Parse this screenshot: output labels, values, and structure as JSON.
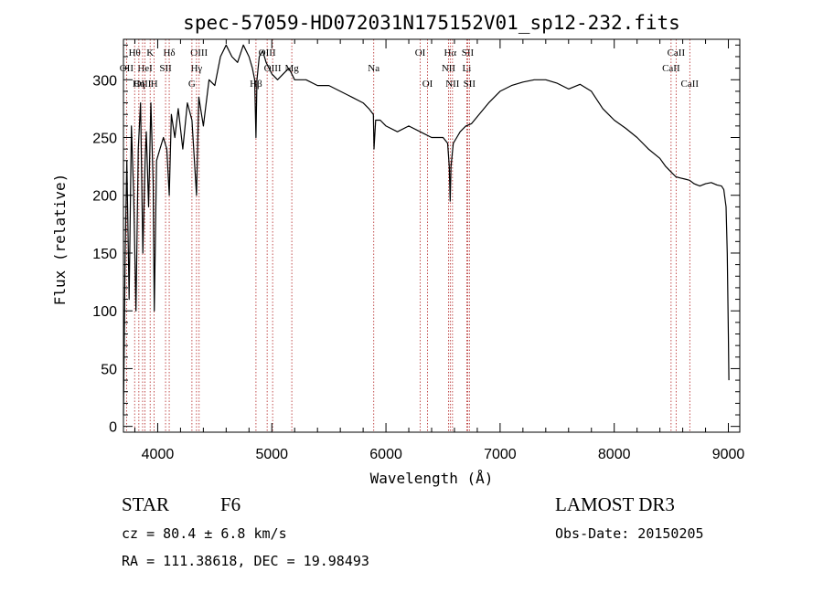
{
  "chart_data": {
    "type": "line",
    "title": "spec-57059-HD072031N175152V01_sp12-232.fits",
    "xlabel": "Wavelength (Å)",
    "ylabel": "Flux (relative)",
    "xlim": [
      3700,
      9100
    ],
    "ylim": [
      -5,
      335
    ],
    "xticks": [
      4000,
      5000,
      6000,
      7000,
      8000,
      9000
    ],
    "yticks": [
      0,
      50,
      100,
      150,
      200,
      250,
      300
    ],
    "grid": false,
    "line_color": "#000000",
    "marker_color": "#b22222",
    "spectrum": {
      "name": "flux",
      "x": [
        3700,
        3715,
        3730,
        3750,
        3770,
        3790,
        3810,
        3830,
        3850,
        3870,
        3890,
        3900,
        3920,
        3940,
        3960,
        3970,
        3990,
        4020,
        4050,
        4080,
        4101,
        4120,
        4150,
        4180,
        4220,
        4260,
        4300,
        4340,
        4360,
        4400,
        4450,
        4500,
        4550,
        4600,
        4650,
        4700,
        4750,
        4800,
        4830,
        4850,
        4861,
        4870,
        4890,
        4920,
        4950,
        5000,
        5050,
        5100,
        5150,
        5200,
        5300,
        5400,
        5500,
        5600,
        5700,
        5800,
        5850,
        5890,
        5895,
        5910,
        5950,
        6000,
        6100,
        6200,
        6300,
        6400,
        6500,
        6540,
        6555,
        6563,
        6570,
        6590,
        6620,
        6650,
        6700,
        6750,
        6800,
        6900,
        7000,
        7100,
        7200,
        7300,
        7400,
        7500,
        7600,
        7700,
        7800,
        7900,
        8000,
        8100,
        8200,
        8300,
        8400,
        8450,
        8500,
        8540,
        8580,
        8620,
        8660,
        8700,
        8750,
        8800,
        8850,
        8900,
        8940,
        8960,
        8980,
        8990,
        9000,
        9005
      ],
      "y": [
        10,
        150,
        230,
        110,
        260,
        200,
        100,
        240,
        280,
        150,
        230,
        255,
        190,
        280,
        210,
        100,
        230,
        240,
        250,
        240,
        200,
        270,
        250,
        275,
        240,
        280,
        265,
        200,
        285,
        260,
        300,
        295,
        320,
        330,
        320,
        315,
        330,
        320,
        310,
        300,
        250,
        300,
        320,
        325,
        315,
        305,
        300,
        305,
        310,
        300,
        300,
        295,
        295,
        290,
        285,
        280,
        275,
        270,
        240,
        265,
        265,
        260,
        255,
        260,
        255,
        250,
        250,
        245,
        225,
        195,
        225,
        245,
        250,
        255,
        260,
        262,
        268,
        280,
        290,
        295,
        298,
        300,
        300,
        297,
        292,
        296,
        290,
        275,
        265,
        258,
        250,
        240,
        232,
        225,
        220,
        216,
        215,
        214,
        213,
        210,
        208,
        210,
        211,
        209,
        208,
        205,
        190,
        150,
        80,
        40
      ]
    },
    "line_markers": [
      {
        "label": "Hθ",
        "x": 3798,
        "row": 0
      },
      {
        "label": "K",
        "x": 3934,
        "row": 0
      },
      {
        "label": "Hδ",
        "x": 4101,
        "row": 0
      },
      {
        "label": "OII",
        "x": 3727,
        "row": 1
      },
      {
        "label": "HeI",
        "x": 3889,
        "row": 1
      },
      {
        "label": "SII",
        "x": 4069,
        "row": 1
      },
      {
        "label": "OIII",
        "x": 3868,
        "row": 2
      },
      {
        "label": "Hη",
        "x": 3835,
        "row": 2
      },
      {
        "label": "H",
        "x": 3969,
        "row": 2
      },
      {
        "label": "OIII",
        "x": 4363,
        "row": 0
      },
      {
        "label": "Hγ",
        "x": 4340,
        "row": 1
      },
      {
        "label": "G",
        "x": 4300,
        "row": 2
      },
      {
        "label": "OIII",
        "x": 4959,
        "row": 0
      },
      {
        "label": "OIII",
        "x": 5007,
        "row": 1
      },
      {
        "label": "Mg",
        "x": 5175,
        "row": 1
      },
      {
        "label": "Hβ",
        "x": 4861,
        "row": 2
      },
      {
        "label": "Na",
        "x": 5893,
        "row": 1
      },
      {
        "label": "OI",
        "x": 6300,
        "row": 0
      },
      {
        "label": "OI",
        "x": 6364,
        "row": 2
      },
      {
        "label": "Hα",
        "x": 6563,
        "row": 0
      },
      {
        "label": "SII",
        "x": 6716,
        "row": 0
      },
      {
        "label": "NII",
        "x": 6548,
        "row": 1
      },
      {
        "label": "Li",
        "x": 6708,
        "row": 1
      },
      {
        "label": "NII",
        "x": 6583,
        "row": 2
      },
      {
        "label": "SII",
        "x": 6731,
        "row": 2
      },
      {
        "label": "CaII",
        "x": 8542,
        "row": 0
      },
      {
        "label": "CaII",
        "x": 8498,
        "row": 1
      },
      {
        "label": "CaII",
        "x": 8662,
        "row": 2
      }
    ]
  },
  "info": {
    "object_type": "STAR",
    "subclass": "F6",
    "survey": "LAMOST DR3",
    "cz_line": "cz = 80.4 ± 6.8 km/s",
    "obs_date_line": "Obs-Date: 20150205",
    "coords_line": "RA = 111.38618, DEC =  19.98493"
  }
}
